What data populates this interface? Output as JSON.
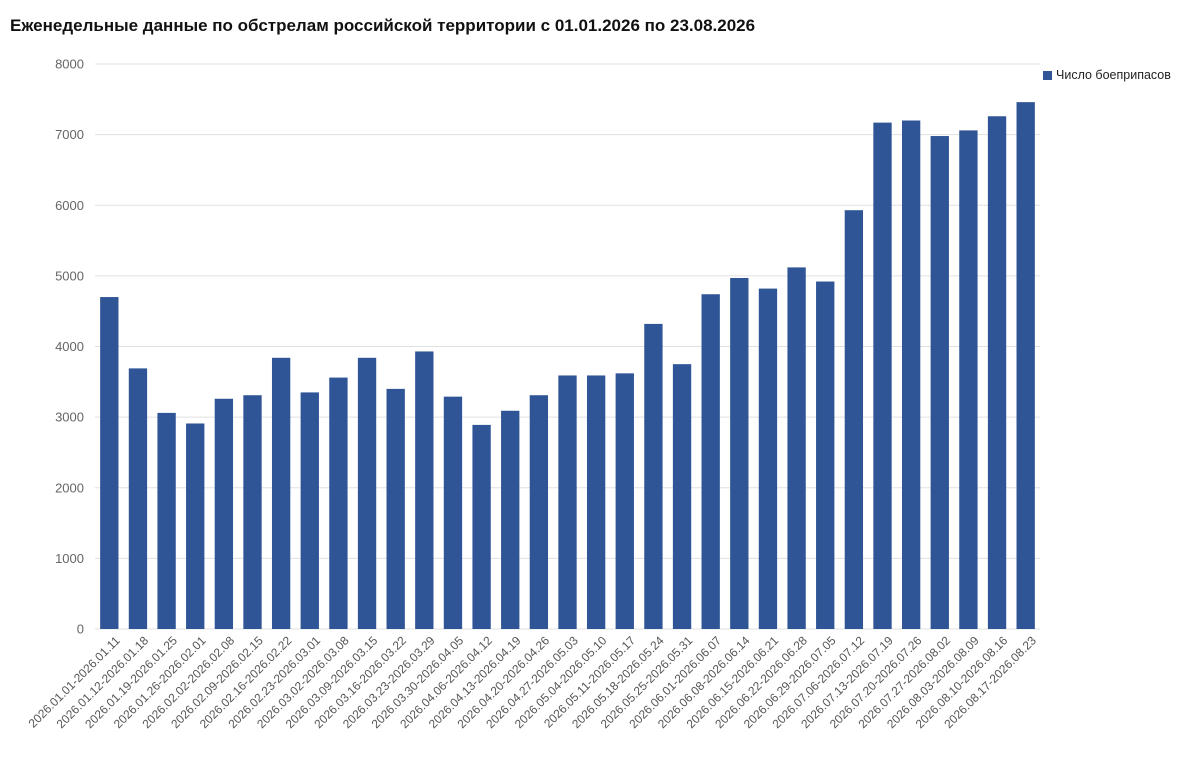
{
  "chart_data": {
    "type": "bar",
    "title": "Еженедельные данные по обстрелам российской территории с 01.01.2026 по 23.08.2026",
    "xlabel": "",
    "ylabel": "",
    "ylim": [
      0,
      8000
    ],
    "yticks": [
      "0",
      "1000",
      "2000",
      "3000",
      "4000",
      "5000",
      "6000",
      "7000",
      "8000"
    ],
    "grid": true,
    "legend_position": "top-right",
    "categories": [
      "2026.01.01-2026.01.11",
      "2026.01.12-2026.01.18",
      "2026.01.19-2026.01.25",
      "2026.01.26-2026.02.01",
      "2026.02.02-2026.02.08",
      "2026.02.09-2026.02.15",
      "2026.02.16-2026.02.22",
      "2026.02.23-2026.03.01",
      "2026.03.02-2026.03.08",
      "2026.03.09-2026.03.15",
      "2026.03.16-2026.03.22",
      "2026.03.23-2026.03.29",
      "2026.03.30-2026.04.05",
      "2026.04.06-2026.04.12",
      "2026.04.13-2026.04.19",
      "2026.04.20-2026.04.26",
      "2026.04.27-2026.05.03",
      "2026.05.04-2026.05.10",
      "2026.05.11-2026.05.17",
      "2026.05.18-2026.05.24",
      "2026.05.25-2026.05.31",
      "2026.06.01-2026.06.07",
      "2026.06.08-2026.06.14",
      "2026.06.15-2026.06.21",
      "2026.06.22-2026.06.28",
      "2026.06.29-2026.07.05",
      "2026.07.06-2026.07.12",
      "2026.07.13-2026.07.19",
      "2026.07.20-2026.07.26",
      "2026.07.27-2026.08.02",
      "2026.08.03-2026.08.09",
      "2026.08.10-2026.08.16",
      "2026.08.17-2026.08.23"
    ],
    "series": [
      {
        "name": "Число боеприпасов",
        "color": "#2f5597",
        "values": [
          4700,
          3690,
          3060,
          2910,
          3260,
          3310,
          3840,
          3350,
          3560,
          3840,
          3400,
          3930,
          3290,
          2890,
          3090,
          3310,
          3590,
          3590,
          3620,
          4320,
          3750,
          4740,
          4970,
          4820,
          5120,
          4920,
          5930,
          7170,
          7200,
          6980,
          7060,
          7260,
          7460
        ]
      }
    ]
  }
}
